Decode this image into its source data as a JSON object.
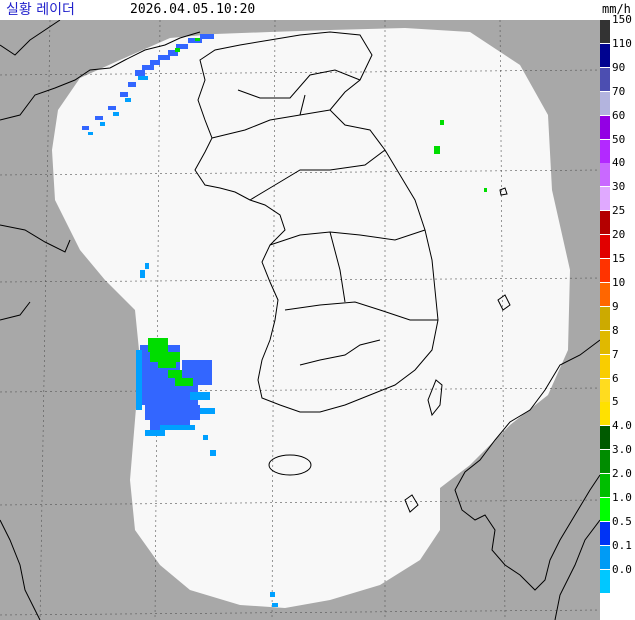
{
  "header": {
    "title": "실황 레이더",
    "timestamp": "2026.04.05.10:20"
  },
  "legend": {
    "unit": "mm/h",
    "items": [
      {
        "label": "150",
        "color": "#333333"
      },
      {
        "label": "110",
        "color": "#000390"
      },
      {
        "label": "90",
        "color": "#4c4eb1"
      },
      {
        "label": "70",
        "color": "#b3b4de"
      },
      {
        "label": "60",
        "color": "#9300e4"
      },
      {
        "label": "50",
        "color": "#b329ff"
      },
      {
        "label": "40",
        "color": "#c969ff"
      },
      {
        "label": "30",
        "color": "#e0a9ff"
      },
      {
        "label": "25",
        "color": "#b40000"
      },
      {
        "label": "20",
        "color": "#e10000"
      },
      {
        "label": "15",
        "color": "#ff3300"
      },
      {
        "label": "10",
        "color": "#ff6600"
      },
      {
        "label": "9",
        "color": "#ccaa00"
      },
      {
        "label": "8",
        "color": "#e0b900"
      },
      {
        "label": "7",
        "color": "#f9cd00"
      },
      {
        "label": "6",
        "color": "#ffdc1f"
      },
      {
        "label": "5",
        "color": "#ffe100"
      },
      {
        "label": "4.0",
        "color": "#005a00"
      },
      {
        "label": "3.0",
        "color": "#008c00"
      },
      {
        "label": "2.0",
        "color": "#00be00"
      },
      {
        "label": "1.0",
        "color": "#00ff00"
      },
      {
        "label": "0.5",
        "color": "#0033f5"
      },
      {
        "label": "0.1",
        "color": "#009bf5"
      },
      {
        "label": "0.0",
        "color": "#00c8ff"
      }
    ]
  },
  "colors": {
    "land_outside": "#a8a8a8",
    "coverage": "#f8f8f8",
    "grid": "#555555",
    "rain_light": "#00a0ff",
    "rain_blue": "#3366ff",
    "rain_green": "#00dd00"
  }
}
